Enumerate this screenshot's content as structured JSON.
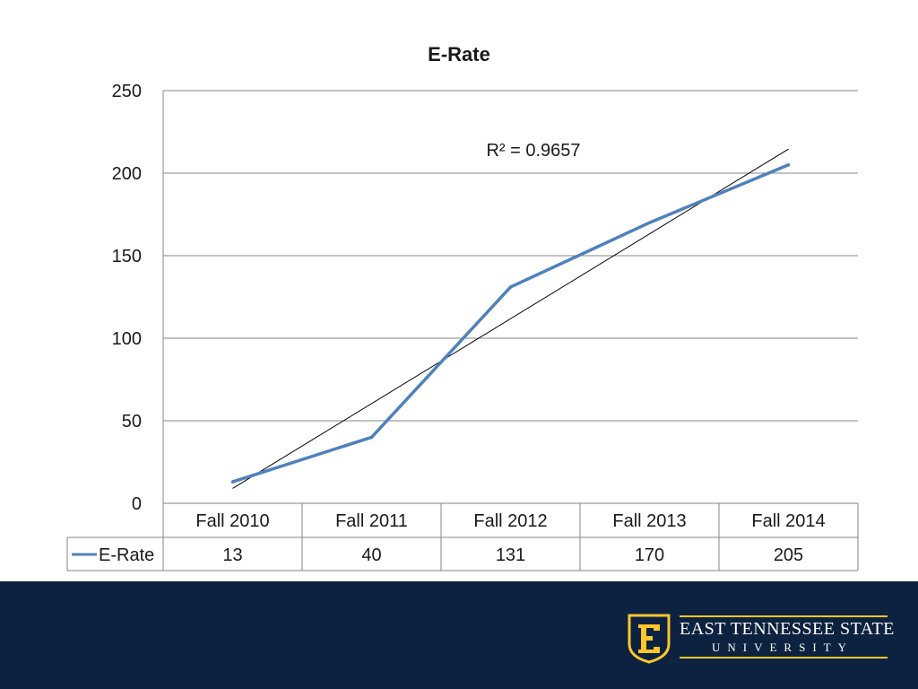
{
  "chart_data": {
    "type": "line",
    "title": "E-Rate",
    "categories": [
      "Fall 2010",
      "Fall 2011",
      "Fall 2012",
      "Fall 2013",
      "Fall 2014"
    ],
    "series": [
      {
        "name": "E-Rate",
        "values": [
          13,
          40,
          131,
          170,
          205
        ],
        "color": "#4f81bd"
      }
    ],
    "trendline": {
      "type": "linear",
      "label": "R² = 0.9657",
      "color": "#000000"
    },
    "ylim": [
      0,
      250
    ],
    "yticks": [
      "0",
      "50",
      "100",
      "150",
      "200",
      "250"
    ],
    "grid": true,
    "data_table": {
      "series_label": "E-Rate",
      "values": [
        "13",
        "40",
        "131",
        "170",
        "205"
      ]
    }
  },
  "footer": {
    "background": "#0d2240",
    "logo": {
      "icon": "etsu-shield-e-icon",
      "name": "EAST TENNESSEE STATE",
      "sub": "UNIVERSITY",
      "accent": "#ffc72c"
    }
  }
}
